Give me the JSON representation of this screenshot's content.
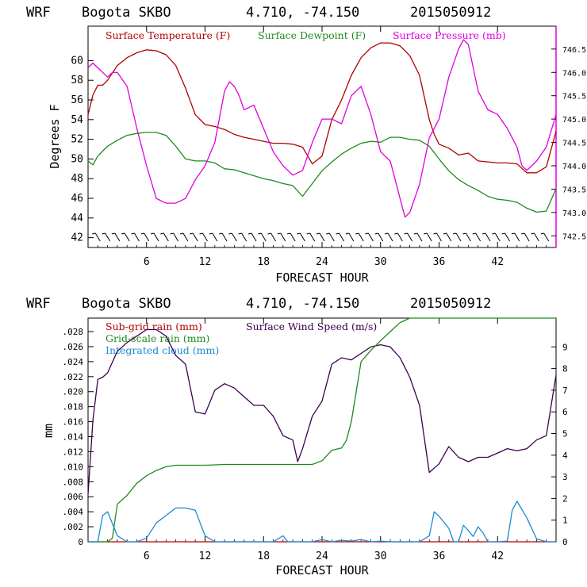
{
  "charts": [
    {
      "header": {
        "model": "WRF",
        "station": "Bogota SKBO",
        "coords": "4.710, -74.150",
        "run": "2015050912"
      },
      "xlabel": "FORECAST HOUR",
      "ylabel": "Degrees F",
      "y_ticks": [
        "42",
        "44",
        "46",
        "48",
        "50",
        "52",
        "54",
        "56",
        "58",
        "60"
      ],
      "y2_ticks": [
        "742.5",
        "743.0",
        "743.5",
        "744.0",
        "744.5",
        "745.0",
        "745.5",
        "746.0",
        "746.5"
      ],
      "x_ticks": [
        "6",
        "12",
        "18",
        "24",
        "30",
        "36",
        "42"
      ],
      "legend": [
        {
          "label": "Surface Temperature (F)",
          "color": "#b00000"
        },
        {
          "label": "Surface Dewpoint (F)",
          "color": "#1e8a1e"
        },
        {
          "label": "Surface Pressure (mb)",
          "color": "#e000e0"
        }
      ]
    },
    {
      "header": {
        "model": "WRF",
        "station": "Bogota SKBO",
        "coords": "4.710, -74.150",
        "run": "2015050912"
      },
      "xlabel": "FORECAST HOUR",
      "ylabel": "mm",
      "y_ticks": [
        "0",
        ".002",
        ".004",
        ".006",
        ".008",
        ".010",
        ".012",
        ".014",
        ".016",
        ".018",
        ".020",
        ".022",
        ".024",
        ".026",
        ".028"
      ],
      "y2_ticks": [
        "0",
        "1",
        "2",
        "3",
        "4",
        "5",
        "6",
        "7",
        "8",
        "9"
      ],
      "x_ticks": [
        "6",
        "12",
        "18",
        "24",
        "30",
        "36",
        "42"
      ],
      "legend": [
        {
          "label": "Sub-grid rain (mm)",
          "color": "#b00000"
        },
        {
          "label": "Surface Wind Speed (m/s)",
          "color": "#3a0050"
        },
        {
          "label": "Grid-scale rain (mm)",
          "color": "#1e8a1e"
        },
        {
          "label": "Integrated cloud (mm)",
          "color": "#1a8ad4"
        }
      ]
    }
  ],
  "chart_data": [
    {
      "type": "line",
      "title": "WRF Bogota SKBO 4.710, -74.150 2015050912",
      "xlabel": "FORECAST HOUR",
      "ylabel": "Degrees F",
      "xlim": [
        0,
        48
      ],
      "ylim": [
        41,
        63.5
      ],
      "y2lim": [
        742.25,
        746.99
      ],
      "wind_barbs_row": "along bottom at ~42 F",
      "series": [
        {
          "name": "Surface Temperature (F)",
          "axis": "left",
          "color": "#b00000",
          "x": [
            0,
            0.5,
            1,
            1.5,
            2,
            3,
            4,
            5,
            6,
            7,
            8,
            9,
            10,
            11,
            12,
            13,
            14,
            15,
            16,
            17,
            18,
            19,
            20,
            21,
            22,
            23,
            24,
            25,
            26,
            27,
            28,
            29,
            30,
            31,
            32,
            33,
            34,
            35,
            35.5,
            36,
            37,
            38,
            39,
            40,
            41,
            42,
            43,
            44,
            45,
            46,
            47,
            48
          ],
          "y": [
            54.5,
            56.5,
            57.5,
            57.5,
            58,
            59.5,
            60.3,
            60.8,
            61.1,
            61,
            60.6,
            59.5,
            57.2,
            54.5,
            53.5,
            53.3,
            53,
            52.5,
            52.2,
            52,
            51.8,
            51.6,
            51.6,
            51.5,
            51.2,
            49.5,
            50.3,
            54,
            56,
            58.5,
            60.3,
            61.3,
            61.8,
            61.8,
            61.5,
            60.5,
            58.5,
            54,
            52.5,
            51.5,
            51.1,
            50.4,
            50.6,
            49.8,
            49.7,
            49.6,
            49.6,
            49.5,
            48.6,
            48.6,
            49.2,
            52.8
          ]
        },
        {
          "name": "Surface Dewpoint (F)",
          "axis": "left",
          "color": "#1e8a1e",
          "x": [
            0,
            0.5,
            1,
            1.5,
            2,
            3,
            4,
            5,
            6,
            7,
            8,
            9,
            10,
            11,
            12,
            13,
            14,
            15,
            16,
            17,
            18,
            19,
            20,
            21,
            22,
            23,
            24,
            25,
            26,
            27,
            28,
            29,
            30,
            31,
            32,
            33,
            34,
            35,
            36,
            37,
            38,
            39,
            40,
            41,
            42,
            43,
            44,
            45,
            46,
            47,
            48
          ],
          "y": [
            49.8,
            49.4,
            50.3,
            50.8,
            51.3,
            51.9,
            52.4,
            52.6,
            52.7,
            52.7,
            52.4,
            51.3,
            50,
            49.8,
            49.8,
            49.6,
            49,
            48.9,
            48.6,
            48.3,
            48,
            47.8,
            47.5,
            47.3,
            46.2,
            47.5,
            48.8,
            49.7,
            50.5,
            51.1,
            51.6,
            51.8,
            51.7,
            52.2,
            52.2,
            52,
            51.9,
            51.3,
            50,
            48.8,
            47.9,
            47.3,
            46.8,
            46.2,
            45.9,
            45.8,
            45.6,
            45,
            44.6,
            44.7,
            47
          ]
        },
        {
          "name": "Surface Pressure (mb)",
          "axis": "right",
          "color": "#e000e0",
          "x": [
            0,
            0.5,
            1,
            1.5,
            2,
            2.5,
            3,
            4,
            5,
            6,
            7,
            8,
            9,
            10,
            11,
            12,
            13,
            14,
            14.5,
            15,
            15.5,
            16,
            17,
            18,
            19,
            20,
            21,
            22,
            23,
            24,
            25,
            26,
            27,
            28,
            29,
            30,
            30.5,
            31,
            32,
            32.5,
            33,
            34,
            35,
            36,
            37,
            38,
            38.5,
            39,
            40,
            41,
            42,
            43,
            44,
            44.5,
            45,
            46,
            47,
            48
          ],
          "y": [
            746.1,
            746.2,
            746.1,
            746,
            745.9,
            746,
            746,
            745.7,
            744.8,
            744,
            743.3,
            743.2,
            743.2,
            743.3,
            743.7,
            744,
            744.5,
            745.6,
            745.8,
            745.7,
            745.5,
            745.2,
            745.3,
            744.8,
            744.3,
            744,
            743.8,
            743.9,
            744.5,
            745,
            745,
            744.9,
            745.5,
            745.7,
            745.1,
            744.3,
            744.2,
            744.1,
            743.3,
            742.9,
            743,
            743.6,
            744.6,
            745,
            745.9,
            746.5,
            746.7,
            746.6,
            745.6,
            745.2,
            745.1,
            744.8,
            744.4,
            744,
            743.9,
            744.1,
            744.4,
            745.1
          ]
        }
      ]
    },
    {
      "type": "line",
      "title": "WRF Bogota SKBO 4.710, -74.150 2015050912",
      "xlabel": "FORECAST HOUR",
      "ylabel": "mm",
      "xlim": [
        0,
        48
      ],
      "ylim": [
        0,
        0.0298
      ],
      "y2lim": [
        0,
        10.33
      ],
      "series": [
        {
          "name": "Sub-grid rain (mm)",
          "axis": "left",
          "color": "#b00000",
          "x": [
            0,
            48
          ],
          "y": [
            0,
            0
          ]
        },
        {
          "name": "Surface Wind Speed (m/s)",
          "axis": "right",
          "color": "#3a0050",
          "x": [
            0,
            0.5,
            1,
            1.5,
            2,
            3,
            4,
            5,
            6,
            7,
            8,
            9,
            10,
            11,
            12,
            13,
            14,
            15,
            16,
            17,
            18,
            19,
            20,
            21,
            21.5,
            22,
            23,
            24,
            25,
            26,
            27,
            28,
            29,
            30,
            31,
            32,
            33,
            34,
            35,
            36,
            37,
            38,
            39,
            40,
            41,
            42,
            43,
            44,
            45,
            46,
            47,
            48
          ],
          "y": [
            2.2,
            5.6,
            7.5,
            7.6,
            7.8,
            8.8,
            9.2,
            9.5,
            9.8,
            9.8,
            9.5,
            8.6,
            8.2,
            6,
            5.9,
            7,
            7.3,
            7.1,
            6.7,
            6.3,
            6.3,
            5.8,
            4.9,
            4.7,
            3.7,
            4.3,
            5.8,
            6.5,
            8.2,
            8.5,
            8.4,
            8.7,
            9,
            9.1,
            9,
            8.5,
            7.6,
            6.3,
            3.2,
            3.6,
            4.4,
            3.9,
            3.7,
            3.9,
            3.9,
            4.1,
            4.3,
            4.2,
            4.3,
            4.7,
            4.9,
            7.7
          ]
        },
        {
          "name": "Grid-scale rain (mm)",
          "axis": "left",
          "color": "#1e8a1e",
          "x": [
            0,
            1,
            2,
            2.5,
            3,
            4,
            5,
            6,
            7,
            8,
            9,
            10,
            11,
            12,
            14,
            16,
            18,
            20,
            22,
            23,
            24,
            25,
            26,
            26.5,
            27,
            28,
            29,
            30,
            31,
            32,
            33,
            34,
            40,
            48
          ],
          "y": [
            0,
            0,
            0,
            0.0005,
            0.005,
            0.0062,
            0.0078,
            0.0088,
            0.0095,
            0.01,
            0.0102,
            0.0102,
            0.0102,
            0.0102,
            0.0103,
            0.0103,
            0.0103,
            0.0103,
            0.0103,
            0.0103,
            0.0108,
            0.0122,
            0.0125,
            0.0135,
            0.016,
            0.024,
            0.0255,
            0.0268,
            0.028,
            0.0292,
            0.0298,
            0.0298,
            0.0298,
            0.0298
          ]
        },
        {
          "name": "Integrated cloud (mm)",
          "axis": "left",
          "color": "#1a8ad4",
          "x": [
            0,
            1,
            1.5,
            2,
            3,
            4,
            5,
            6,
            7,
            8,
            9,
            10,
            11,
            12,
            13,
            19,
            20,
            20.5,
            21,
            23,
            24,
            25,
            26,
            27,
            28,
            29,
            30,
            31,
            32,
            33,
            34,
            35,
            35.5,
            36,
            37,
            37.5,
            38,
            38.5,
            39,
            39.5,
            40,
            40.5,
            41,
            42,
            43,
            43.5,
            44,
            45,
            46,
            47,
            48
          ],
          "y": [
            0,
            0,
            0.0035,
            0.004,
            0.0008,
            0,
            0,
            0.0005,
            0.0025,
            0.0035,
            0.0045,
            0.0045,
            0.0042,
            0.0008,
            0,
            0,
            0.0008,
            0,
            0,
            0,
            0.0003,
            0,
            0.0002,
            0.0001,
            0.0003,
            0,
            0.0001,
            0,
            0,
            0,
            0,
            0.0008,
            0.004,
            0.0034,
            0.0018,
            0,
            0,
            0.0022,
            0.0015,
            0.0007,
            0.002,
            0.0012,
            0,
            0,
            0.0001,
            0.0042,
            0.0054,
            0.0032,
            0.0004,
            0,
            0
          ]
        }
      ]
    }
  ]
}
